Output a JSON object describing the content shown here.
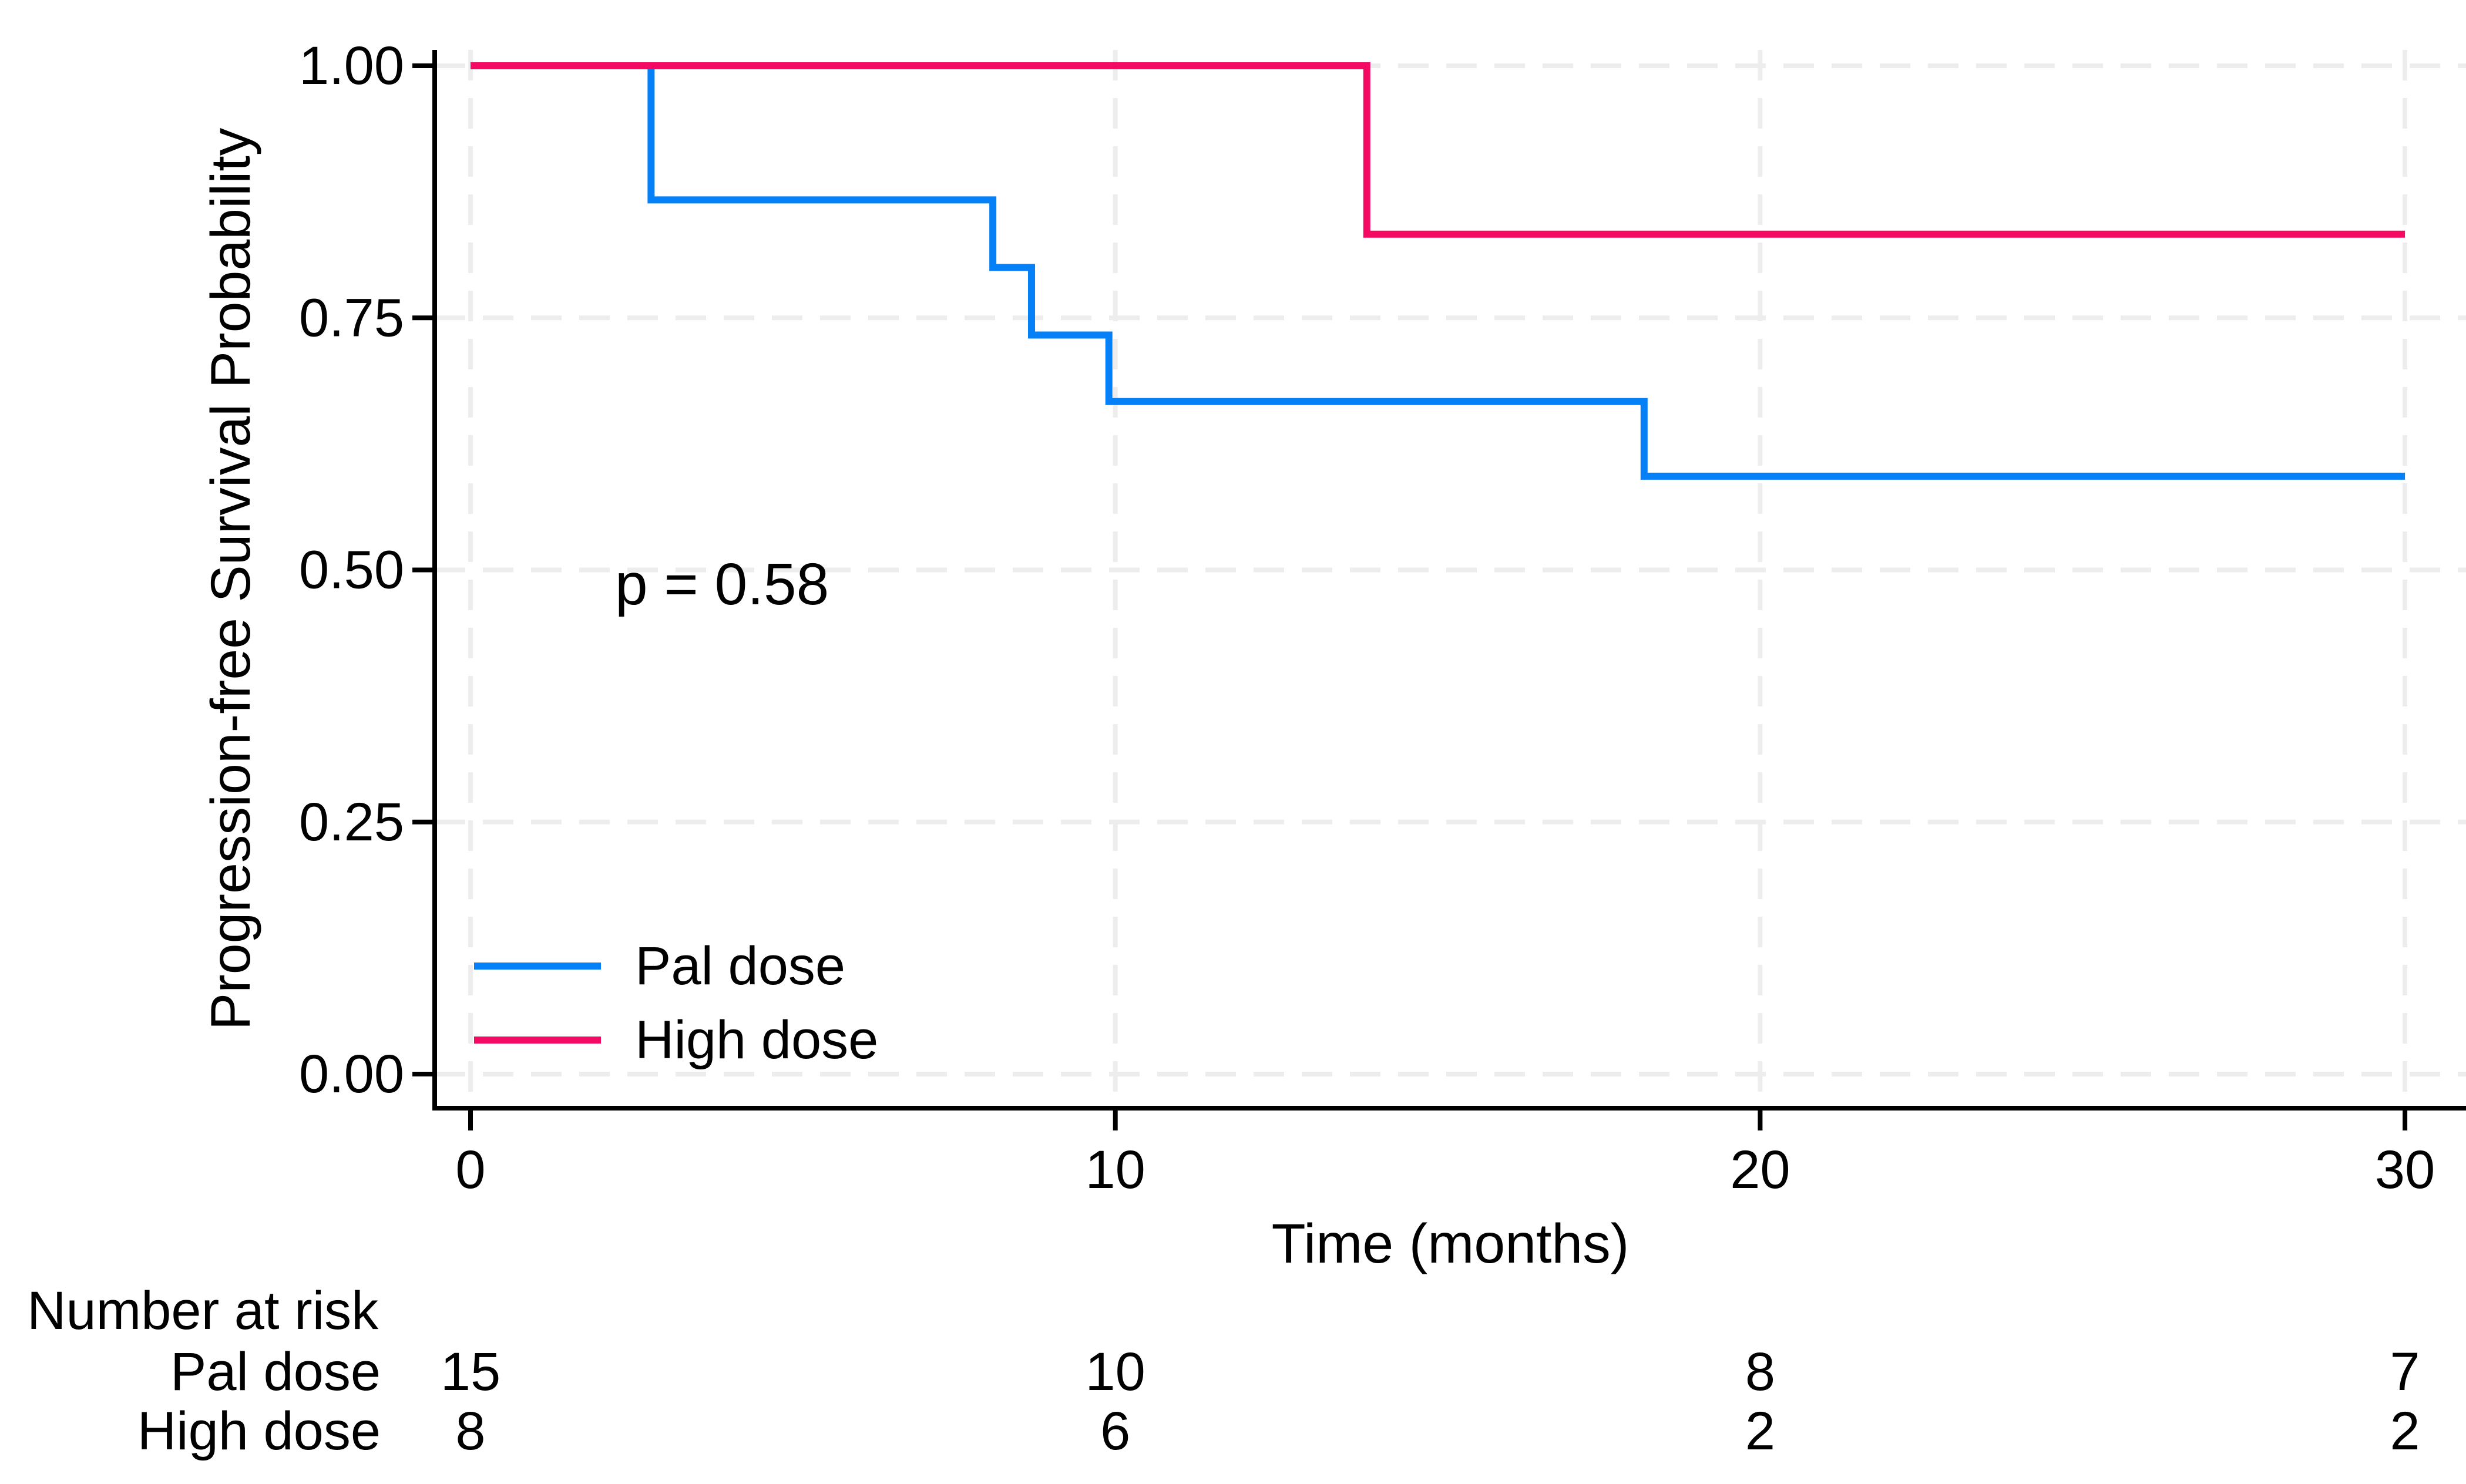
{
  "figure": {
    "p_value_text": "p = 0.58",
    "x_axis_title": "Time (months)",
    "y_axis_title": "Progression-free Survival Probability",
    "number_at_risk_heading": "Number at risk"
  },
  "legend": {
    "items": [
      {
        "label": "Pal dose",
        "color": "#0680f7"
      },
      {
        "label": "High dose",
        "color": "#f40a62"
      }
    ]
  },
  "colors": {
    "pal_dose": "#0680f7",
    "high_dose": "#f40a62",
    "gridline": "#ededed",
    "axis": "#000000",
    "background": "#ffffff"
  },
  "chart_data": {
    "type": "line",
    "subtype": "kaplan_meier_step",
    "title": "",
    "xlabel": "Time (months)",
    "ylabel": "Progression-free Survival Probability",
    "xlim": [
      0,
      30
    ],
    "ylim": [
      0,
      1
    ],
    "x_ticks": {
      "values": [
        0,
        10,
        20,
        30
      ],
      "labels": [
        "0",
        "10",
        "20",
        "30"
      ]
    },
    "y_ticks": {
      "values": [
        0,
        0.25,
        0.5,
        0.75,
        1
      ],
      "labels": [
        "0.00",
        "0.25",
        "0.50",
        "0.75",
        "1.00"
      ]
    },
    "grid": "dashed-major-both-axes",
    "legend_position": "inside-bottom-left",
    "annotation": {
      "text": "p = 0.58",
      "x_months": 2.2,
      "y_prob": 0.49
    },
    "series": [
      {
        "name": "Pal dose",
        "color": "#0680f7",
        "steps": [
          [
            0,
            1.0
          ],
          [
            2.8,
            0.867
          ],
          [
            8.1,
            0.8
          ],
          [
            8.7,
            0.733
          ],
          [
            9.9,
            0.667
          ],
          [
            18.2,
            0.593
          ],
          [
            30,
            0.593
          ]
        ]
      },
      {
        "name": "High dose",
        "color": "#f40a62",
        "steps": [
          [
            0,
            1.0
          ],
          [
            13.9,
            0.833
          ],
          [
            30,
            0.833
          ]
        ]
      }
    ],
    "number_at_risk": {
      "heading": "Number at risk",
      "times": [
        0,
        10,
        20,
        30
      ],
      "rows": [
        {
          "name": "Pal dose",
          "counts": [
            "15",
            "10",
            "8",
            "7"
          ]
        },
        {
          "name": "High dose",
          "counts": [
            "8",
            "6",
            "2",
            "2"
          ]
        }
      ]
    }
  }
}
